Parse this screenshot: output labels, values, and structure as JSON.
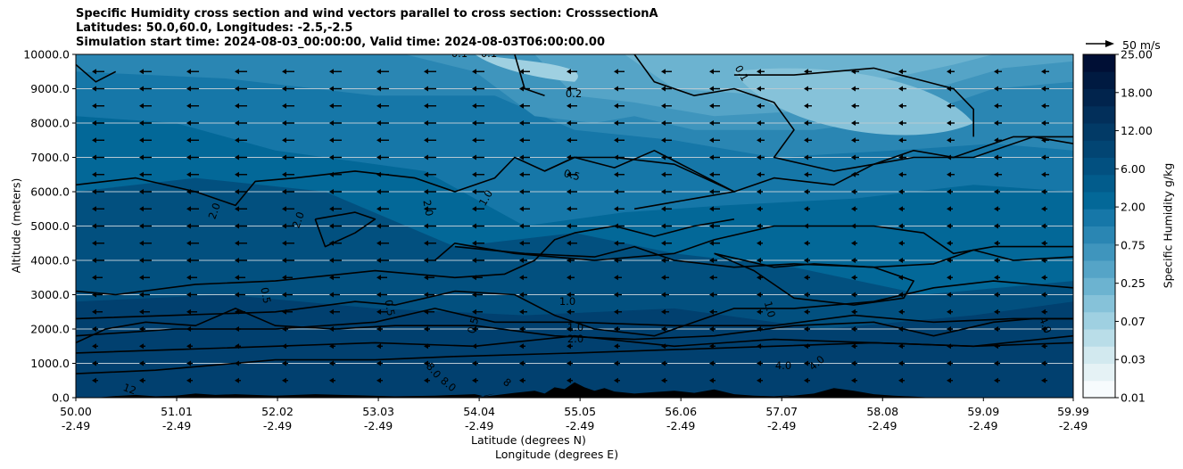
{
  "chart_data": {
    "type": "contour",
    "title_lines": [
      "Specific Humidity cross section and wind vectors parallel to cross section: CrosssectionA",
      "Latitudes: 50.0,60.0, Longitudes: -2.5,-2.5",
      "Simulation start time: 2024-08-03_00:00:00, Valid time: 2024-08-03T06:00:00.00"
    ],
    "xlabel_lines": [
      "Latitude (degrees N)",
      "Longitude (degrees E)"
    ],
    "ylabel": "Altitude (meters)",
    "x_ticks": [
      {
        "lat": "50.00",
        "lon": "-2.49"
      },
      {
        "lat": "51.01",
        "lon": "-2.49"
      },
      {
        "lat": "52.02",
        "lon": "-2.49"
      },
      {
        "lat": "53.03",
        "lon": "-2.49"
      },
      {
        "lat": "54.04",
        "lon": "-2.49"
      },
      {
        "lat": "55.05",
        "lon": "-2.49"
      },
      {
        "lat": "56.06",
        "lon": "-2.49"
      },
      {
        "lat": "57.07",
        "lon": "-2.49"
      },
      {
        "lat": "58.08",
        "lon": "-2.49"
      },
      {
        "lat": "59.09",
        "lon": "-2.49"
      },
      {
        "lat": "59.99",
        "lon": "-2.49"
      }
    ],
    "x_range": [
      50.0,
      59.99
    ],
    "y_ticks": [
      "0.0",
      "1000.0",
      "2000.0",
      "3000.0",
      "4000.0",
      "5000.0",
      "6000.0",
      "7000.0",
      "8000.0",
      "9000.0",
      "10000.0"
    ],
    "y_range": [
      0,
      10000
    ],
    "grid": "horizontal",
    "colorbar": {
      "label": "Specific Humidity g/kg",
      "levels": [
        "0.01",
        "0.03",
        "0.07",
        "0.25",
        "0.75",
        "2.00",
        "6.00",
        "12.00",
        "18.00",
        "25.00"
      ],
      "colors": [
        "#f7fbfd",
        "#e5f2f5",
        "#d2e9ef",
        "#b9dde8",
        "#9fd0e1",
        "#86c2d9",
        "#6cb3d0",
        "#55a4c7",
        "#3f95bd",
        "#2a86b3",
        "#1677a8",
        "#036898",
        "#025c8c",
        "#025080",
        "#024573",
        "#023a66",
        "#022f5a",
        "#01244d",
        "#001a41",
        "#000f35"
      ]
    },
    "quiver_key": {
      "label": "50 m/s"
    },
    "contour_labels": [
      {
        "text": "0.1"
      },
      {
        "text": "0.1"
      },
      {
        "text": "0.1"
      },
      {
        "text": "0.2"
      },
      {
        "text": "0.5"
      },
      {
        "text": "1.0"
      },
      {
        "text": "2.0"
      },
      {
        "text": "2.0"
      },
      {
        "text": "2.0"
      },
      {
        "text": "0.5"
      },
      {
        "text": "0.5"
      },
      {
        "text": "1.0"
      },
      {
        "text": "1.0"
      },
      {
        "text": "0.5"
      },
      {
        "text": "2.0"
      },
      {
        "text": "1.0"
      },
      {
        "text": "4.0"
      },
      {
        "text": "4.0"
      },
      {
        "text": "4.0"
      },
      {
        "text": "8.0"
      },
      {
        "text": "8.0"
      },
      {
        "text": "8"
      },
      {
        "text": "12"
      }
    ]
  }
}
